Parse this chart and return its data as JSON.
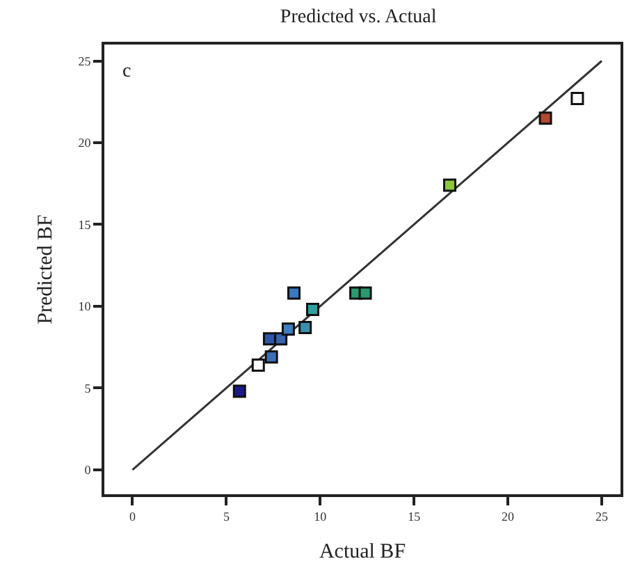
{
  "chart_data": {
    "type": "scatter",
    "title": "Predicted vs. Actual",
    "xlabel": "Actual BF",
    "ylabel": "Predicted BF",
    "annotations": [
      "c"
    ],
    "xlim": [
      -1.5,
      26
    ],
    "ylim": [
      -1.5,
      26
    ],
    "xticks": [
      0,
      5,
      10,
      15,
      20,
      25
    ],
    "yticks": [
      0,
      5,
      10,
      15,
      20,
      25
    ],
    "series": [
      {
        "marker": "square",
        "x": [
          5.7,
          6.7,
          7.4,
          7.3,
          7.9,
          8.3,
          9.2,
          9.6,
          8.6,
          11.9,
          12.4,
          16.9,
          22.0,
          23.7
        ],
        "values": [
          4.8,
          6.4,
          6.9,
          8.0,
          8.0,
          8.6,
          8.7,
          9.8,
          10.8,
          10.8,
          10.8,
          17.4,
          21.5,
          22.7
        ],
        "colors": [
          "#1a1a8c",
          "#ffffff",
          "#3a6fb5",
          "#2f55a8",
          "#3565b0",
          "#3f7fbf",
          "#3a8fb0",
          "#2fa0a0",
          "#3a78c0",
          "#2a9a70",
          "#2a9a70",
          "#8cc83c",
          "#b04a30",
          "#ffffff"
        ]
      },
      {
        "type": "line",
        "marker": "none",
        "x": [
          0,
          25
        ],
        "values": [
          0,
          25
        ],
        "color": "#333333"
      }
    ]
  }
}
